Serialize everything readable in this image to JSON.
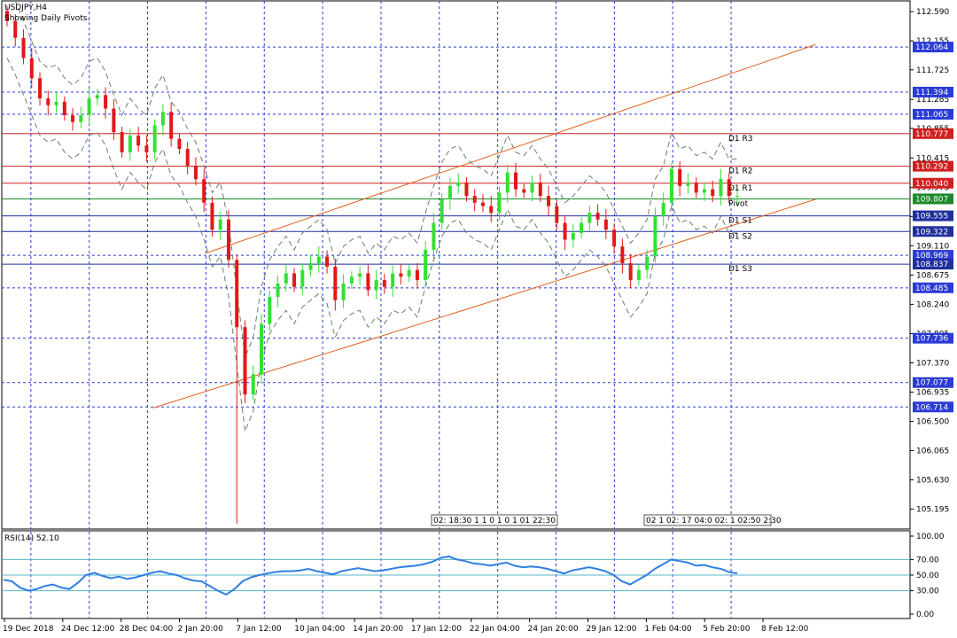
{
  "chart_data": {
    "type": "candlestick",
    "symbol_title": "USDJPY,H4",
    "subtitle": "Showing Daily Pivots.",
    "price_axis": {
      "range": [
        104.9,
        112.75
      ],
      "tick_labels": [
        112.59,
        112.155,
        111.725,
        111.285,
        110.855,
        110.415,
        109.975,
        109.545,
        109.11,
        108.675,
        108.24,
        107.805,
        107.37,
        106.935,
        106.5,
        106.065,
        105.63,
        105.195
      ]
    },
    "x_axis": {
      "labels": [
        "19 Dec 2018",
        "24 Dec 12:00",
        "28 Dec 04:00",
        "2 Jan 20:00",
        "7 Jan 12:00",
        "10 Jan 04:00",
        "14 Jan 20:00",
        "17 Jan 12:00",
        "22 Jan 04:00",
        "24 Jan 20:00",
        "29 Jan 12:00",
        "1 Feb 04:00",
        "5 Feb 20:00",
        "8 Feb 12:00"
      ]
    },
    "horizontal_levels": [
      {
        "value": 112.064,
        "kind": "dashed",
        "color": "#2b3bd6"
      },
      {
        "value": 111.394,
        "kind": "dashed",
        "color": "#2b3bd6"
      },
      {
        "value": 111.065,
        "kind": "dashed",
        "color": "#2b3bd6"
      },
      {
        "value": 110.777,
        "kind": "pivot-resistance",
        "color": "#d02020",
        "label": "D1 R3"
      },
      {
        "value": 110.292,
        "kind": "pivot-resistance",
        "color": "#d02020",
        "label": "D1 R2"
      },
      {
        "value": 110.04,
        "kind": "pivot-resistance",
        "color": "#d02020",
        "label": "D1 R1"
      },
      {
        "value": 109.807,
        "kind": "pivot",
        "color": "#1b8a2a",
        "label": "Pivot"
      },
      {
        "value": 109.555,
        "kind": "pivot-support",
        "color": "#1f2f9e",
        "label": "D1 S1"
      },
      {
        "value": 109.322,
        "kind": "pivot-support",
        "color": "#1f2f9e",
        "label": "D1 S2"
      },
      {
        "value": 108.969,
        "kind": "dashed",
        "color": "#2b3bd6"
      },
      {
        "value": 108.837,
        "kind": "pivot-support",
        "color": "#1f2f9e",
        "label": "D1 S3"
      },
      {
        "value": 108.485,
        "kind": "dashed",
        "color": "#2b3bd6"
      },
      {
        "value": 107.736,
        "kind": "dashed",
        "color": "#2b3bd6"
      },
      {
        "value": 107.077,
        "kind": "dashed",
        "color": "#2b3bd6"
      },
      {
        "value": 106.714,
        "kind": "dashed",
        "color": "#2b3bd6"
      }
    ],
    "channel_lines": [
      {
        "points": [
          [
            3.45,
            109.0
          ],
          [
            13.9,
            112.1
          ]
        ],
        "color": "#e0601c"
      },
      {
        "points": [
          [
            2.55,
            106.7
          ],
          [
            13.9,
            109.8
          ]
        ],
        "color": "#e0601c"
      }
    ],
    "candles_close": [
      112.45,
      112.2,
      111.9,
      111.6,
      111.3,
      111.2,
      111.25,
      111.05,
      110.95,
      111.05,
      111.3,
      111.35,
      111.15,
      110.8,
      110.5,
      110.75,
      110.6,
      110.5,
      110.9,
      111.1,
      110.7,
      110.55,
      110.3,
      110.1,
      109.75,
      109.35,
      109.5,
      108.9,
      107.9,
      106.9,
      107.2,
      107.95,
      108.35,
      108.55,
      108.7,
      108.5,
      108.75,
      108.85,
      108.95,
      108.8,
      108.3,
      108.55,
      108.65,
      108.7,
      108.45,
      108.6,
      108.5,
      108.7,
      108.65,
      108.75,
      108.6,
      109.05,
      109.45,
      109.8,
      110.0,
      110.05,
      109.85,
      109.75,
      109.7,
      109.6,
      109.9,
      110.2,
      109.95,
      109.9,
      110.05,
      109.85,
      109.7,
      109.45,
      109.2,
      109.3,
      109.45,
      109.6,
      109.5,
      109.35,
      109.1,
      108.85,
      108.6,
      108.75,
      108.95,
      109.55,
      109.75,
      110.25,
      110.0,
      110.05,
      109.9,
      109.95,
      109.85,
      110.1,
      109.85,
      109.85
    ],
    "candle_colors": {
      "up": "#33e033",
      "down": "#e01818"
    },
    "bands_color": "#6b7d6b",
    "indicator": {
      "name": "RSI(14)",
      "value": 52.1,
      "range": [
        0,
        100
      ],
      "tick_labels": [
        100.0,
        70.0,
        50.0,
        30.0,
        0.0
      ],
      "levels": [
        70,
        50,
        30
      ],
      "line_color": "#2f7fe0",
      "values": [
        44,
        42,
        34,
        30,
        32,
        36,
        38,
        34,
        32,
        40,
        50,
        53,
        49,
        46,
        48,
        45,
        47,
        50,
        53,
        55,
        52,
        50,
        46,
        43,
        42,
        36,
        30,
        25,
        32,
        42,
        47,
        50,
        52,
        54,
        55,
        55,
        56,
        58,
        55,
        53,
        51,
        55,
        57,
        59,
        57,
        55,
        56,
        58,
        60,
        61,
        62,
        64,
        67,
        72,
        74,
        70,
        68,
        65,
        64,
        62,
        64,
        66,
        62,
        60,
        61,
        60,
        58,
        55,
        52,
        56,
        58,
        60,
        58,
        55,
        50,
        42,
        38,
        44,
        50,
        58,
        64,
        70,
        68,
        66,
        62,
        63,
        60,
        58,
        54,
        52
      ]
    },
    "time_stamp_groups": [
      {
        "label": "02: 18:30 1 1 0 1 0 1 01 22:30"
      },
      {
        "label": "02 1 02: 17 04:0 02: 1 02:50 2:30"
      }
    ]
  }
}
